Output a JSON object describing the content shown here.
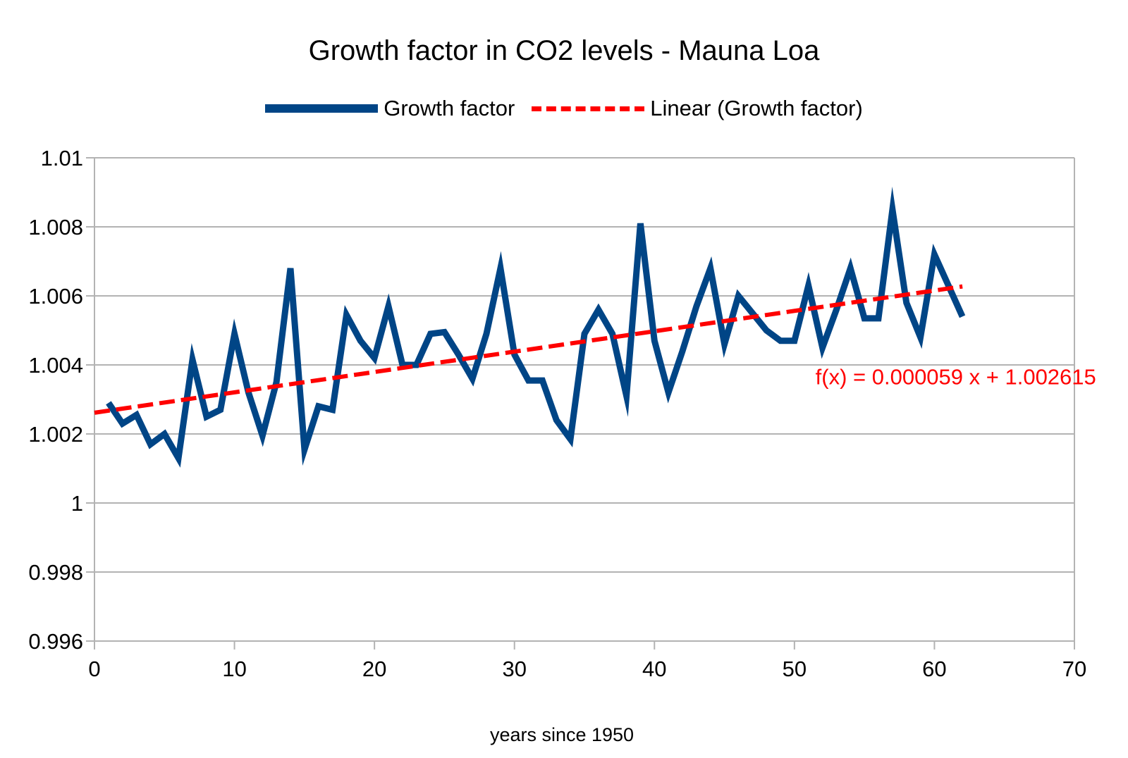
{
  "chart_data": {
    "type": "line",
    "title": "Growth factor in CO2 levels - Mauna Loa",
    "xlabel": "years since 1950",
    "ylabel": "",
    "xlim": [
      0,
      70
    ],
    "ylim": [
      0.996,
      1.01
    ],
    "x_ticks": [
      "0",
      "10",
      "20",
      "30",
      "40",
      "50",
      "60",
      "70"
    ],
    "y_ticks": [
      "0.996",
      "0.998",
      "1",
      "1.002",
      "1.004",
      "1.006",
      "1.008",
      "1.01"
    ],
    "grid": "horizontal",
    "legend_position": "top",
    "series": [
      {
        "name": "Growth factor",
        "color": "#004586",
        "x": [
          1,
          2,
          3,
          4,
          5,
          6,
          7,
          8,
          9,
          10,
          11,
          12,
          13,
          14,
          15,
          16,
          17,
          18,
          19,
          20,
          21,
          22,
          23,
          24,
          25,
          26,
          27,
          28,
          29,
          30,
          31,
          32,
          33,
          34,
          35,
          36,
          37,
          38,
          39,
          40,
          41,
          42,
          43,
          44,
          45,
          46,
          47,
          48,
          49,
          50,
          51,
          52,
          53,
          54,
          55,
          56,
          57,
          58,
          59,
          60,
          61,
          62
        ],
        "values": [
          1.0029,
          1.0023,
          1.00255,
          1.0017,
          1.002,
          1.0013,
          1.00415,
          1.0025,
          1.0027,
          1.0049,
          1.0032,
          1.00195,
          1.0035,
          1.0068,
          1.00155,
          1.0028,
          1.0027,
          1.00545,
          1.0047,
          1.0042,
          1.0057,
          1.004,
          1.004,
          1.0049,
          1.00495,
          1.0043,
          1.0036,
          1.0049,
          1.0068,
          1.0043,
          1.00355,
          1.00355,
          1.0024,
          1.00185,
          1.0049,
          1.0056,
          1.0049,
          1.0031,
          1.0081,
          1.0047,
          1.0032,
          1.0044,
          1.0057,
          1.0068,
          1.0046,
          1.006,
          1.0055,
          1.005,
          1.0047,
          1.0047,
          1.0063,
          1.0045,
          1.0056,
          1.0068,
          1.00535,
          1.00535,
          1.0085,
          1.0058,
          1.0048,
          1.0072,
          1.0063,
          1.0054
        ]
      },
      {
        "name": "Linear (Growth factor)",
        "color": "#ff0000",
        "x": [
          0,
          62
        ],
        "values": [
          1.002615,
          1.006273
        ]
      }
    ],
    "annotations": [
      {
        "text": "f(x) = 0.000059 x + 1.002615",
        "color": "#ff0000",
        "x": 51.5,
        "y": 1.0034
      }
    ]
  }
}
